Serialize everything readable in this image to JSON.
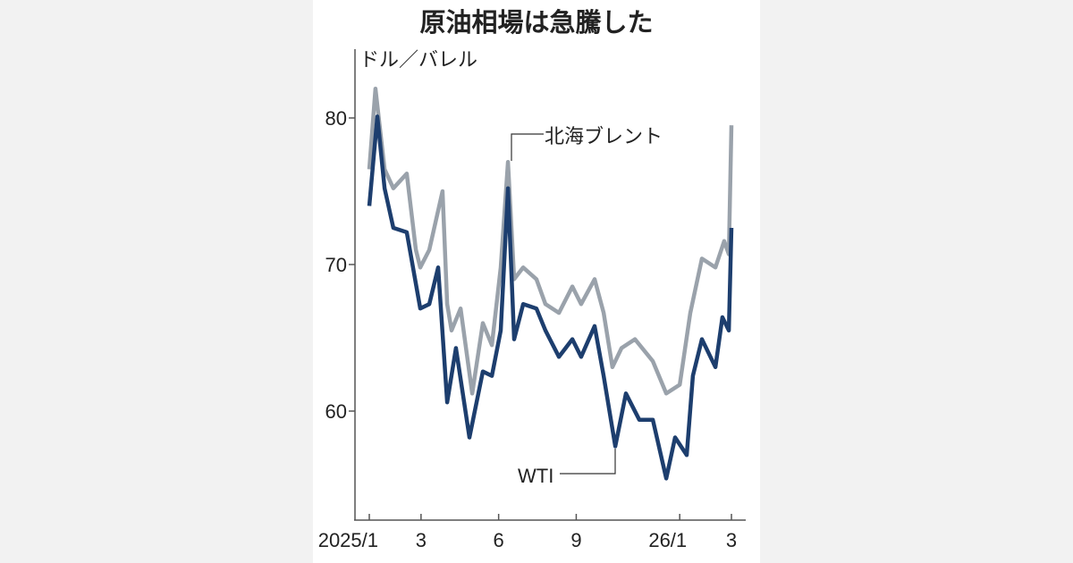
{
  "chart_data": {
    "type": "line",
    "title": "原油相場は急騰した",
    "ylabel": "ドル／バレル",
    "xlabel": "",
    "x_unit": "months since 2025/1",
    "xlim": [
      -0.55,
      14.7
    ],
    "ylim": [
      52.6,
      84.7
    ],
    "yticks": [
      60,
      70,
      80
    ],
    "xticks": [
      {
        "x": 0,
        "label": "2025/1"
      },
      {
        "x": 2,
        "label": "3"
      },
      {
        "x": 5,
        "label": "6"
      },
      {
        "x": 8,
        "label": "9"
      },
      {
        "x": 12,
        "label": "26/1"
      },
      {
        "x": 14,
        "label": "3"
      }
    ],
    "grid": false,
    "series": [
      {
        "name": "北海ブレント",
        "color": "#9aa2ab",
        "x": [
          0,
          0.24,
          0.59,
          0.93,
          1.45,
          1.8,
          1.97,
          2.32,
          2.83,
          3.01,
          3.18,
          3.53,
          3.98,
          4.39,
          4.74,
          5.08,
          5.36,
          5.6,
          5.95,
          6.46,
          6.81,
          7.33,
          7.85,
          8.19,
          8.71,
          9.06,
          9.4,
          9.75,
          10.27,
          10.96,
          11.48,
          12.0,
          12.41,
          12.86,
          13.38,
          13.72,
          13.9,
          14.0
        ],
        "y": [
          76.5,
          82,
          76.5,
          75.2,
          76.2,
          71,
          69.8,
          71,
          75,
          67.3,
          65.5,
          67,
          61.2,
          66,
          64.5,
          69.8,
          77,
          69,
          69.8,
          69,
          67.3,
          66.7,
          68.5,
          67.3,
          69,
          66.7,
          63,
          64.3,
          64.9,
          63.4,
          61.2,
          61.8,
          66.7,
          70.4,
          69.8,
          71.6,
          70.7,
          79.5
        ]
      },
      {
        "name": "WTI",
        "color": "#1d3e6e",
        "x": [
          0,
          0.31,
          0.59,
          0.93,
          1.45,
          1.97,
          2.32,
          2.66,
          3.01,
          3.35,
          3.87,
          4.39,
          4.74,
          5.08,
          5.36,
          5.6,
          5.95,
          6.46,
          6.81,
          7.33,
          7.85,
          8.19,
          8.71,
          9.06,
          9.51,
          9.92,
          10.44,
          10.96,
          11.48,
          11.82,
          12.27,
          12.51,
          12.86,
          13.38,
          13.65,
          13.9,
          14.0
        ],
        "y": [
          74,
          80.1,
          75.2,
          72.5,
          72.2,
          67,
          67.3,
          69.8,
          60.6,
          64.3,
          58.2,
          62.7,
          62.4,
          65.5,
          75.2,
          64.9,
          67.3,
          67,
          65.5,
          63.7,
          64.9,
          63.7,
          65.8,
          62.4,
          57.6,
          61.2,
          59.4,
          59.4,
          55.4,
          58.2,
          57,
          62.4,
          64.9,
          63,
          66.4,
          65.5,
          72.5
        ]
      }
    ],
    "annotations": [
      {
        "text": "北海ブレント",
        "series": "北海ブレント"
      },
      {
        "text": "WTI",
        "series": "WTI"
      }
    ]
  }
}
